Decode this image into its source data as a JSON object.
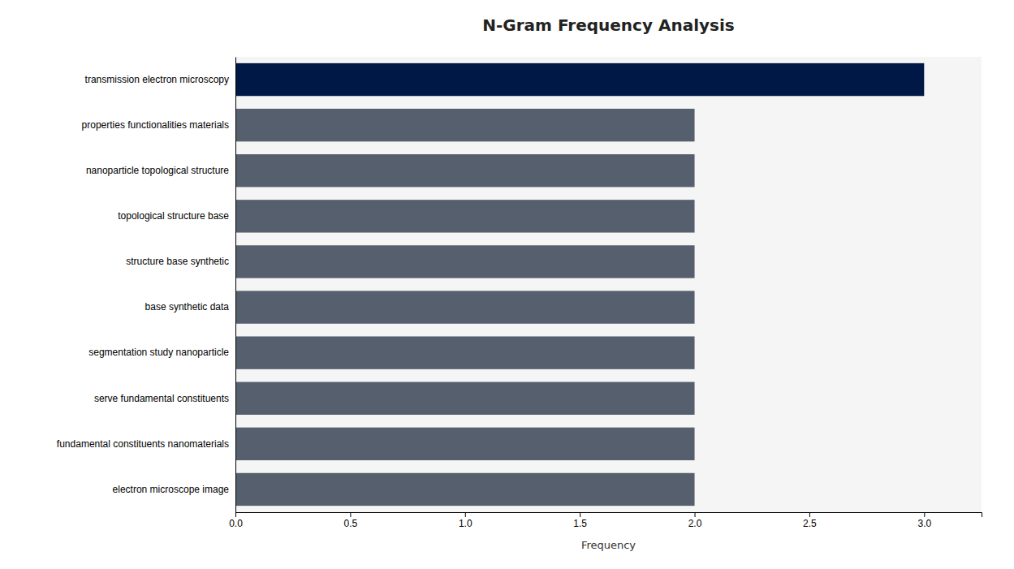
{
  "chart_data": {
    "type": "bar",
    "orientation": "horizontal",
    "title": "N-Gram Frequency Analysis",
    "xlabel": "Frequency",
    "categories": [
      "electron microscope image",
      "fundamental constituents nanomaterials",
      "serve fundamental constituents",
      "segmentation study nanoparticle",
      "base synthetic data",
      "structure base synthetic",
      "topological structure base",
      "nanoparticle topological structure",
      "properties functionalities materials",
      "transmission electron microscopy"
    ],
    "values": [
      2,
      2,
      2,
      2,
      2,
      2,
      2,
      2,
      2,
      3
    ],
    "colors": [
      "#555f6e",
      "#555f6e",
      "#555f6e",
      "#555f6e",
      "#555f6e",
      "#555f6e",
      "#555f6e",
      "#555f6e",
      "#555f6e",
      "#001845"
    ],
    "xlim": [
      0,
      3.25
    ],
    "xticks": [
      {
        "value": 0,
        "label": "0.0"
      },
      0.5,
      {
        "value": 1,
        "label": "1.0"
      },
      1.5,
      {
        "value": 2,
        "label": "2.0"
      },
      2.5,
      {
        "value": 3,
        "label": "3.0"
      }
    ],
    "grid": false
  }
}
